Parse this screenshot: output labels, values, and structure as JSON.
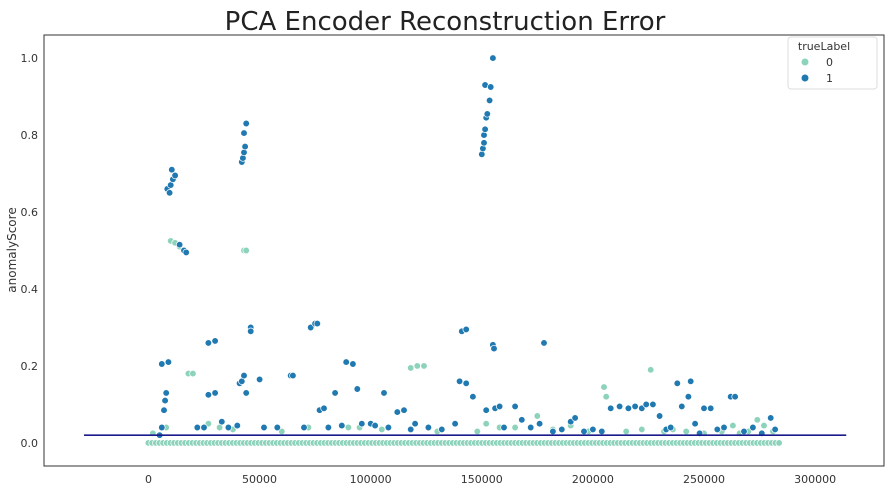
{
  "chart_data": {
    "type": "scatter",
    "title": "PCA Encoder Reconstruction Error",
    "xlabel": "",
    "ylabel": "anomalyScore",
    "xlim": [
      -47000,
      331000
    ],
    "ylim": [
      -0.06,
      1.06
    ],
    "x_ticks": [
      0,
      50000,
      100000,
      150000,
      200000,
      250000,
      300000
    ],
    "x_tick_labels": [
      "0",
      "50000",
      "100000",
      "150000",
      "200000",
      "250000",
      "300000"
    ],
    "y_ticks": [
      0.0,
      0.2,
      0.4,
      0.6,
      0.8,
      1.0
    ],
    "y_tick_labels": [
      "0.0",
      "0.2",
      "0.4",
      "0.6",
      "0.8",
      "1.0"
    ],
    "grid": false,
    "legend": {
      "title": "trueLabel",
      "placement": "top-right"
    },
    "threshold_line": {
      "y": 0.02,
      "x_range": [
        -29000,
        314000
      ],
      "color": "#1a1a8c"
    },
    "series": [
      {
        "name": "0",
        "color": "#8dd3bc",
        "baseline_band": {
          "x_range": [
            0,
            284000
          ],
          "y": 0.0
        },
        "points": [
          [
            2000,
            0.025
          ],
          [
            8000,
            0.04
          ],
          [
            10000,
            0.525
          ],
          [
            12000,
            0.52
          ],
          [
            14000,
            0.51
          ],
          [
            18000,
            0.18
          ],
          [
            20000,
            0.18
          ],
          [
            27000,
            0.05
          ],
          [
            32000,
            0.04
          ],
          [
            38000,
            0.035
          ],
          [
            43000,
            0.5
          ],
          [
            44000,
            0.5
          ],
          [
            52000,
            0.04
          ],
          [
            60000,
            0.03
          ],
          [
            72000,
            0.04
          ],
          [
            90000,
            0.04
          ],
          [
            95000,
            0.04
          ],
          [
            105000,
            0.035
          ],
          [
            118000,
            0.195
          ],
          [
            121000,
            0.2
          ],
          [
            124000,
            0.2
          ],
          [
            130000,
            0.03
          ],
          [
            148000,
            0.03
          ],
          [
            152000,
            0.05
          ],
          [
            158000,
            0.04
          ],
          [
            165000,
            0.04
          ],
          [
            175000,
            0.07
          ],
          [
            182000,
            0.035
          ],
          [
            190000,
            0.045
          ],
          [
            198000,
            0.03
          ],
          [
            205000,
            0.145
          ],
          [
            206000,
            0.12
          ],
          [
            215000,
            0.03
          ],
          [
            222000,
            0.035
          ],
          [
            226000,
            0.19
          ],
          [
            232000,
            0.03
          ],
          [
            236000,
            0.035
          ],
          [
            242000,
            0.03
          ],
          [
            250000,
            0.025
          ],
          [
            258000,
            0.03
          ],
          [
            263000,
            0.045
          ],
          [
            266000,
            0.025
          ],
          [
            270000,
            0.03
          ],
          [
            274000,
            0.06
          ],
          [
            277000,
            0.045
          ],
          [
            281000,
            0.03
          ]
        ]
      },
      {
        "name": "1",
        "color": "#2079b0",
        "points": [
          [
            5000,
            0.02
          ],
          [
            6000,
            0.04
          ],
          [
            7000,
            0.085
          ],
          [
            7500,
            0.11
          ],
          [
            8000,
            0.13
          ],
          [
            6000,
            0.205
          ],
          [
            9000,
            0.21
          ],
          [
            8500,
            0.66
          ],
          [
            9500,
            0.65
          ],
          [
            10000,
            0.67
          ],
          [
            11000,
            0.685
          ],
          [
            12000,
            0.695
          ],
          [
            10500,
            0.71
          ],
          [
            16000,
            0.5
          ],
          [
            17000,
            0.495
          ],
          [
            14000,
            0.515
          ],
          [
            22000,
            0.04
          ],
          [
            25000,
            0.04
          ],
          [
            27000,
            0.125
          ],
          [
            30000,
            0.13
          ],
          [
            27000,
            0.26
          ],
          [
            30000,
            0.265
          ],
          [
            33000,
            0.055
          ],
          [
            36000,
            0.04
          ],
          [
            40000,
            0.045
          ],
          [
            41000,
            0.155
          ],
          [
            42000,
            0.16
          ],
          [
            43000,
            0.175
          ],
          [
            44000,
            0.13
          ],
          [
            46000,
            0.3
          ],
          [
            46000,
            0.29
          ],
          [
            50000,
            0.165
          ],
          [
            42000,
            0.73
          ],
          [
            42500,
            0.74
          ],
          [
            43000,
            0.755
          ],
          [
            43500,
            0.77
          ],
          [
            43000,
            0.805
          ],
          [
            44000,
            0.83
          ],
          [
            52000,
            0.04
          ],
          [
            58000,
            0.04
          ],
          [
            64000,
            0.175
          ],
          [
            65000,
            0.175
          ],
          [
            70000,
            0.04
          ],
          [
            73000,
            0.3
          ],
          [
            75000,
            0.31
          ],
          [
            76000,
            0.31
          ],
          [
            77000,
            0.085
          ],
          [
            79000,
            0.09
          ],
          [
            81000,
            0.04
          ],
          [
            84000,
            0.13
          ],
          [
            87000,
            0.045
          ],
          [
            89000,
            0.21
          ],
          [
            92000,
            0.205
          ],
          [
            94000,
            0.14
          ],
          [
            96000,
            0.05
          ],
          [
            100000,
            0.05
          ],
          [
            102000,
            0.045
          ],
          [
            106000,
            0.13
          ],
          [
            108000,
            0.04
          ],
          [
            112000,
            0.08
          ],
          [
            115000,
            0.085
          ],
          [
            118000,
            0.035
          ],
          [
            120000,
            0.05
          ],
          [
            126000,
            0.04
          ],
          [
            132000,
            0.035
          ],
          [
            138000,
            0.05
          ],
          [
            140000,
            0.16
          ],
          [
            143000,
            0.155
          ],
          [
            141000,
            0.29
          ],
          [
            143000,
            0.295
          ],
          [
            146000,
            0.12
          ],
          [
            150000,
            0.75
          ],
          [
            150500,
            0.765
          ],
          [
            151000,
            0.78
          ],
          [
            151000,
            0.8
          ],
          [
            151500,
            0.815
          ],
          [
            152000,
            0.845
          ],
          [
            152500,
            0.855
          ],
          [
            151500,
            0.93
          ],
          [
            153500,
            0.89
          ],
          [
            154000,
            0.925
          ],
          [
            155000,
            1.0
          ],
          [
            155000,
            0.255
          ],
          [
            155500,
            0.245
          ],
          [
            152000,
            0.085
          ],
          [
            156000,
            0.09
          ],
          [
            158000,
            0.095
          ],
          [
            160000,
            0.04
          ],
          [
            165000,
            0.095
          ],
          [
            168000,
            0.06
          ],
          [
            172000,
            0.04
          ],
          [
            176000,
            0.05
          ],
          [
            178000,
            0.26
          ],
          [
            182000,
            0.03
          ],
          [
            186000,
            0.035
          ],
          [
            190000,
            0.055
          ],
          [
            192000,
            0.065
          ],
          [
            196000,
            0.03
          ],
          [
            200000,
            0.035
          ],
          [
            204000,
            0.03
          ],
          [
            208000,
            0.09
          ],
          [
            212000,
            0.095
          ],
          [
            216000,
            0.09
          ],
          [
            219000,
            0.095
          ],
          [
            222000,
            0.09
          ],
          [
            224000,
            0.1
          ],
          [
            227000,
            0.1
          ],
          [
            230000,
            0.07
          ],
          [
            233000,
            0.035
          ],
          [
            235000,
            0.04
          ],
          [
            238000,
            0.155
          ],
          [
            240000,
            0.095
          ],
          [
            243000,
            0.12
          ],
          [
            244000,
            0.16
          ],
          [
            246000,
            0.05
          ],
          [
            248000,
            0.025
          ],
          [
            250000,
            0.09
          ],
          [
            253000,
            0.09
          ],
          [
            256000,
            0.035
          ],
          [
            259000,
            0.04
          ],
          [
            262000,
            0.12
          ],
          [
            264000,
            0.12
          ],
          [
            268000,
            0.03
          ],
          [
            272000,
            0.04
          ],
          [
            276000,
            0.025
          ],
          [
            280000,
            0.065
          ],
          [
            282000,
            0.035
          ]
        ]
      }
    ]
  }
}
